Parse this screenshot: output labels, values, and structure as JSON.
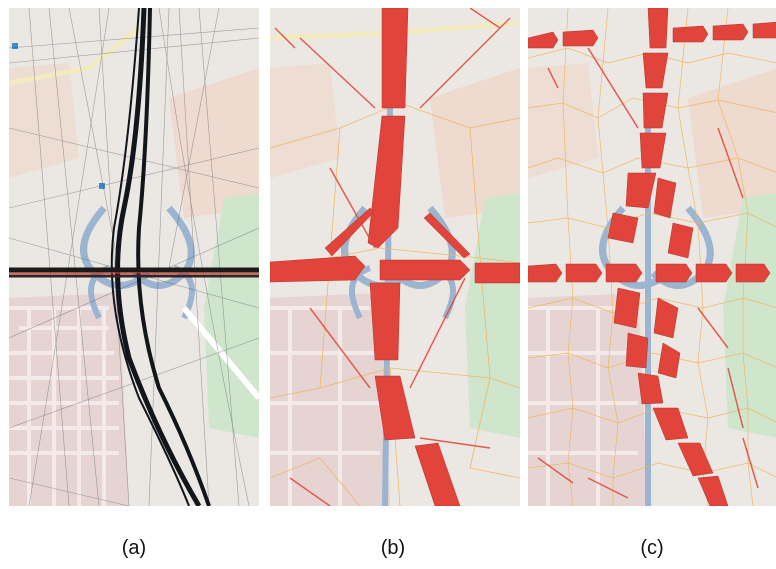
{
  "figure": {
    "panels": [
      {
        "id": "a",
        "label": "(a)",
        "content": "trajectories"
      },
      {
        "id": "b",
        "label": "(b)",
        "content": "coarse-flow-arrows"
      },
      {
        "id": "c",
        "label": "(c)",
        "content": "fine-flow-arrows"
      }
    ],
    "colors": {
      "map_background": "#ece8e4",
      "road_blue": "#9bb4d0",
      "park_green": "#cfe6cc",
      "residential_pink": "#e6d2d2",
      "trajectory_dark": "#10161c",
      "flow_red": "#e0443a",
      "cell_border_orange": "#f1b35a"
    }
  }
}
